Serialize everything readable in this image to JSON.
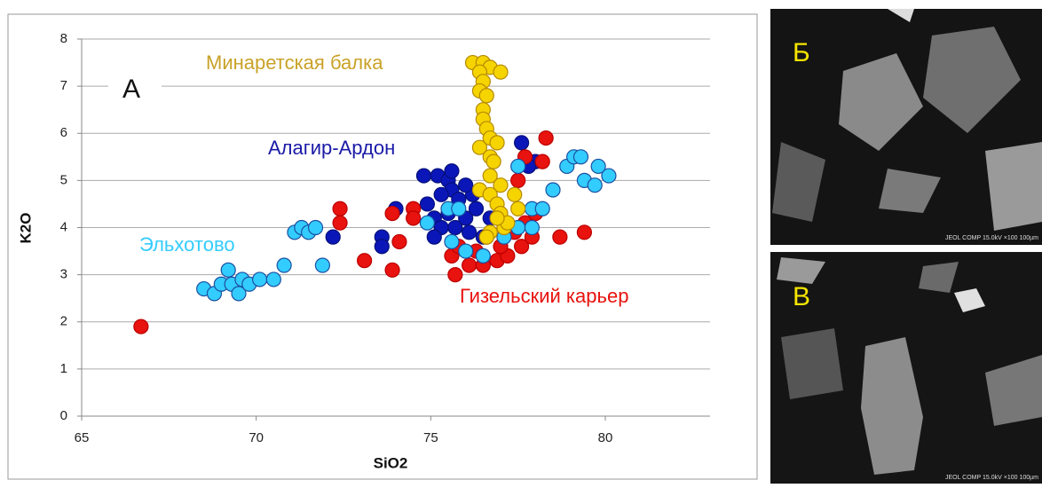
{
  "chart_data": {
    "type": "scatter",
    "panel_label": "А",
    "x_label": "SiO2",
    "y_label": "K2O",
    "xlim": [
      65,
      83
    ],
    "xticks": [
      65,
      70,
      75,
      80
    ],
    "ylim": [
      0,
      8
    ],
    "yticks": [
      0,
      1,
      2,
      3,
      4,
      5,
      6,
      7,
      8
    ],
    "grid": true,
    "series": [
      {
        "name": "Алагир-Ардон",
        "color": "#0b16b8",
        "label_color": "#1a1aa8",
        "x": [
          74.0,
          73.6,
          73.6,
          72.2,
          74.8,
          75.2,
          75.5,
          75.6,
          75.3,
          74.9,
          75.1,
          75.3,
          75.7,
          76.0,
          76.3,
          76.7,
          76.1,
          76.5,
          75.8,
          76.2,
          75.6,
          76.0,
          77.6,
          78.0,
          77.8,
          75.5,
          75.1
        ],
        "values": [
          4.4,
          3.8,
          3.6,
          3.8,
          5.1,
          5.1,
          5.0,
          4.8,
          4.7,
          4.5,
          4.2,
          4.0,
          4.0,
          4.2,
          4.4,
          4.2,
          3.9,
          3.8,
          4.6,
          4.7,
          5.2,
          4.9,
          5.8,
          5.4,
          5.3,
          4.3,
          3.8
        ]
      },
      {
        "name": "Гизельский карьер",
        "color": "#e8120e",
        "label_color": "#e8120e",
        "x": [
          66.7,
          72.4,
          72.4,
          73.1,
          73.9,
          73.9,
          74.1,
          74.5,
          74.5,
          75.7,
          75.6,
          76.1,
          76.5,
          76.9,
          77.2,
          77.6,
          77.9,
          77.4,
          77.0,
          76.6,
          77.5,
          77.7,
          78.2,
          78.3,
          78.7,
          79.4,
          78.0,
          77.7,
          75.8,
          76.3
        ],
        "values": [
          1.9,
          4.4,
          4.1,
          3.3,
          3.1,
          4.3,
          3.7,
          4.4,
          4.2,
          3.0,
          3.4,
          3.2,
          3.2,
          3.3,
          3.4,
          3.6,
          3.8,
          3.9,
          3.6,
          3.8,
          5.0,
          5.5,
          5.4,
          5.9,
          3.8,
          3.9,
          4.3,
          4.1,
          3.6,
          3.5
        ]
      },
      {
        "name": "Эльхотово",
        "color": "#33ccff",
        "label_color": "#33ccff",
        "x": [
          68.5,
          68.8,
          69.0,
          69.2,
          69.3,
          69.5,
          69.6,
          69.8,
          70.1,
          70.5,
          70.8,
          71.1,
          71.3,
          71.5,
          71.7,
          71.9,
          74.9,
          75.5,
          75.8,
          75.6,
          76.0,
          76.5,
          77.1,
          77.5,
          77.9,
          77.5,
          77.9,
          78.2,
          78.5,
          78.9,
          79.1,
          79.3,
          79.4,
          79.7,
          79.8,
          80.1
        ],
        "values": [
          2.7,
          2.6,
          2.8,
          3.1,
          2.8,
          2.6,
          2.9,
          2.8,
          2.9,
          2.9,
          3.2,
          3.9,
          4.0,
          3.9,
          4.0,
          3.2,
          4.1,
          4.4,
          4.4,
          3.7,
          3.5,
          3.4,
          3.8,
          4.0,
          4.0,
          5.3,
          4.4,
          4.4,
          4.8,
          5.3,
          5.5,
          5.5,
          5.0,
          4.9,
          5.3,
          5.1
        ]
      },
      {
        "name": "Минаретская балка",
        "color": "#f5d400",
        "label_color": "#c9a227",
        "x": [
          76.2,
          76.5,
          76.7,
          77.0,
          76.4,
          76.5,
          76.4,
          76.6,
          76.5,
          76.5,
          76.6,
          76.7,
          76.4,
          76.9,
          76.7,
          76.8,
          76.7,
          77.0,
          76.4,
          76.7,
          77.4,
          76.9,
          77.0,
          77.5,
          76.7,
          77.1,
          77.2,
          76.6,
          76.9
        ],
        "values": [
          7.5,
          7.5,
          7.4,
          7.3,
          7.3,
          7.1,
          6.9,
          6.8,
          6.5,
          6.3,
          6.1,
          5.9,
          5.7,
          5.8,
          5.5,
          5.4,
          5.1,
          4.9,
          4.8,
          4.7,
          4.7,
          4.5,
          4.3,
          4.4,
          3.9,
          4.0,
          4.1,
          3.8,
          4.2
        ]
      }
    ]
  },
  "micrographs": [
    {
      "label": "Б",
      "caption": "JEOL COMP 15.0kV ×100 100µm"
    },
    {
      "label": "В",
      "caption": "JEOL COMP 15.0kV ×100 100µm"
    }
  ]
}
